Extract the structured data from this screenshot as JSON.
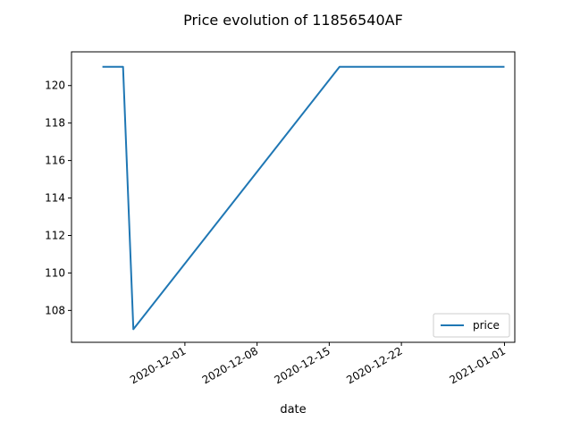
{
  "chart_data": {
    "type": "line",
    "title": "Price evolution of 11856540AF",
    "xlabel": "date",
    "ylabel": "",
    "x_type": "date",
    "xlim": [
      "2020-11-20",
      "2021-01-02"
    ],
    "ylim": [
      106.3,
      121.8
    ],
    "xticks": [
      "2020-12-01",
      "2020-12-08",
      "2020-12-15",
      "2020-12-22",
      "2021-01-01"
    ],
    "yticks": [
      108,
      110,
      112,
      114,
      116,
      118,
      120
    ],
    "grid": false,
    "legend_position": "lower-right",
    "series": [
      {
        "name": "price",
        "color": "#1f77b4",
        "x": [
          "2020-11-23",
          "2020-11-25",
          "2020-11-26",
          "2020-12-16",
          "2021-01-01"
        ],
        "y": [
          121,
          121,
          107,
          121,
          121
        ]
      }
    ]
  }
}
